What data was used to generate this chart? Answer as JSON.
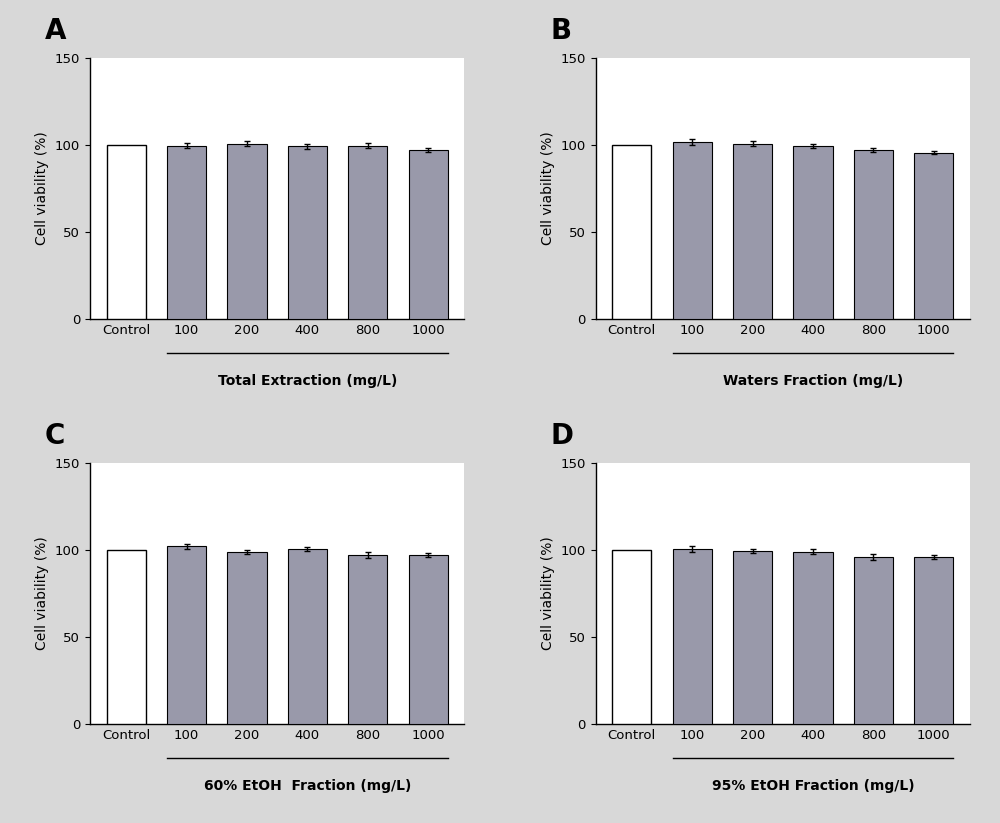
{
  "panels": [
    {
      "label": "A",
      "xlabel_text": "Total Extraction (mg/L)",
      "categories": [
        "Control",
        "100",
        "200",
        "400",
        "800",
        "1000"
      ],
      "values": [
        100,
        99.5,
        100.5,
        99.0,
        99.5,
        97.0
      ],
      "errors": [
        0.0,
        1.5,
        1.5,
        1.2,
        1.5,
        1.2
      ],
      "control_color": "#ffffff",
      "bar_color": "#9999aa"
    },
    {
      "label": "B",
      "xlabel_text": "Waters Fraction (mg/L)",
      "categories": [
        "Control",
        "100",
        "200",
        "400",
        "800",
        "1000"
      ],
      "values": [
        100,
        101.5,
        100.5,
        99.5,
        97.0,
        95.5
      ],
      "errors": [
        0.0,
        1.8,
        1.5,
        1.2,
        1.2,
        1.0
      ],
      "control_color": "#ffffff",
      "bar_color": "#9999aa"
    },
    {
      "label": "C",
      "xlabel_text": "60% EtOH  Fraction (mg/L)",
      "categories": [
        "Control",
        "100",
        "200",
        "400",
        "800",
        "1000"
      ],
      "values": [
        100,
        102.0,
        99.0,
        100.5,
        97.0,
        97.0
      ],
      "errors": [
        0.0,
        1.5,
        1.2,
        1.2,
        1.8,
        1.2
      ],
      "control_color": "#ffffff",
      "bar_color": "#9999aa"
    },
    {
      "label": "D",
      "xlabel_text": "95% EtOH Fraction (mg/L)",
      "categories": [
        "Control",
        "100",
        "200",
        "400",
        "800",
        "1000"
      ],
      "values": [
        100,
        100.5,
        99.5,
        99.0,
        96.0,
        96.0
      ],
      "errors": [
        0.0,
        1.5,
        1.2,
        1.5,
        1.8,
        1.2
      ],
      "control_color": "#ffffff",
      "bar_color": "#9999aa"
    }
  ],
  "ylabel": "Cell viability (%)",
  "ylim": [
    0,
    150
  ],
  "yticks": [
    0,
    50,
    100,
    150
  ],
  "fig_facecolor": "#d8d8d8",
  "ax_facecolor": "#ffffff",
  "panel_label_fontsize": 20,
  "axis_label_fontsize": 10,
  "tick_fontsize": 9.5,
  "xlabel_fontsize": 10
}
